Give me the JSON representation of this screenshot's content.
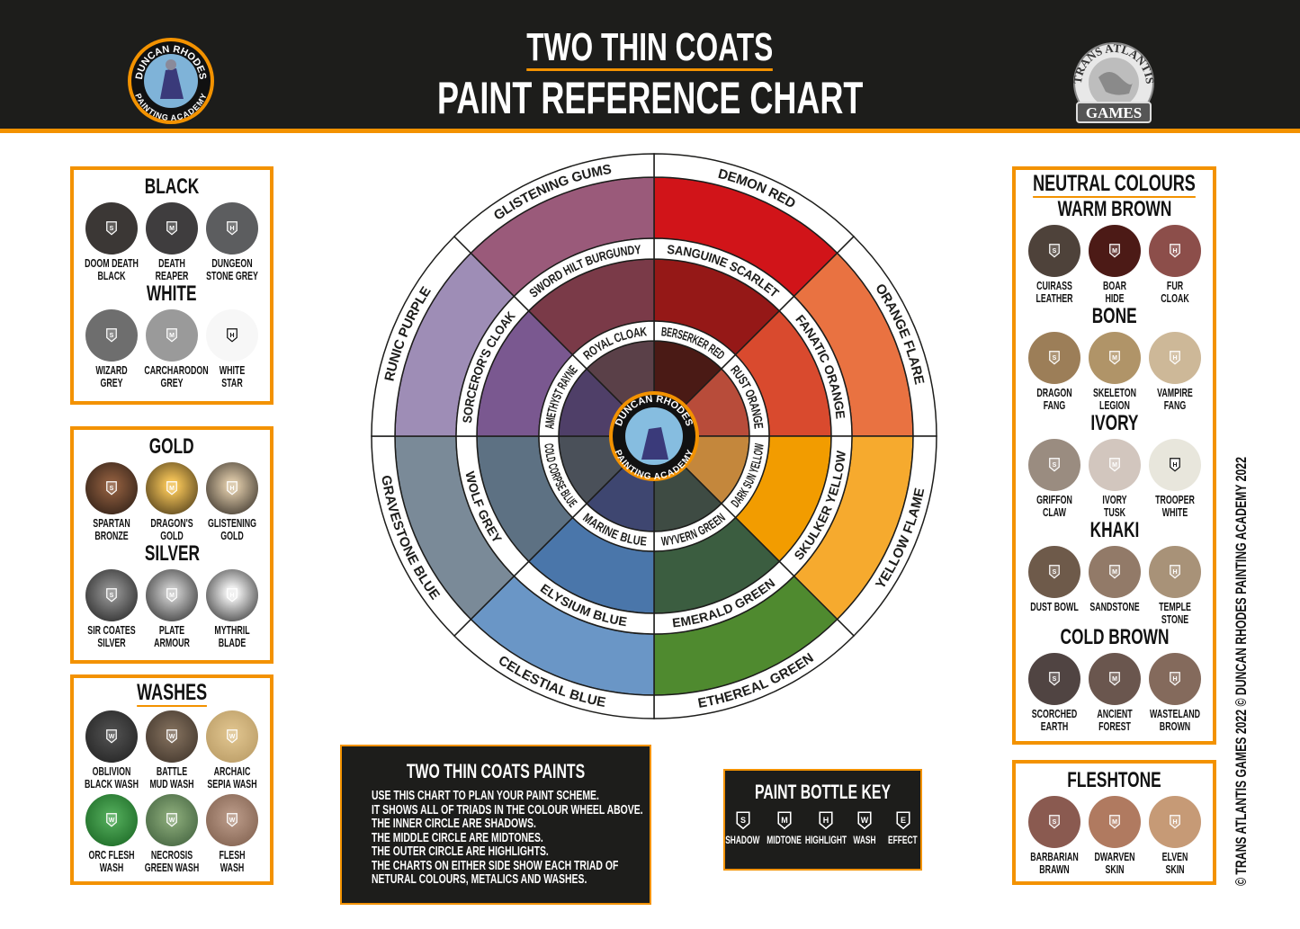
{
  "header": {
    "title_line1": "TWO THIN COATS",
    "title_line2": "PAINT REFERENCE CHART",
    "left_logo": {
      "top_text": "DUNCAN RHODES",
      "bottom_text": "PAINTING ACADEMY"
    },
    "right_logo": {
      "top_text": "TRANS ATLANTIS",
      "bottom_text": "GAMES"
    }
  },
  "colors": {
    "accent": "#f39200",
    "header_bg": "#1d1d1b"
  },
  "left_panels": [
    {
      "groups": [
        {
          "title": "BLACK",
          "paints": [
            {
              "name": "DOOM DEATH\nBLACK",
              "type": "S",
              "color": "#3b3735"
            },
            {
              "name": "DEATH\nREAPER",
              "type": "M",
              "color": "#3f3d3e"
            },
            {
              "name": "DUNGEON\nSTONE GREY",
              "type": "H",
              "color": "#5c5d5f"
            }
          ]
        },
        {
          "title": "WHITE",
          "paints": [
            {
              "name": "WIZARD\nGREY",
              "type": "S",
              "color": "#6e6e6e"
            },
            {
              "name": "CARCHARODON\nGREY",
              "type": "M",
              "color": "#9a9a9a"
            },
            {
              "name": "WHITE\nSTAR",
              "type": "H",
              "color": "#f7f7f7"
            }
          ]
        }
      ]
    },
    {
      "groups": [
        {
          "title": "GOLD",
          "paints": [
            {
              "name": "SPARTAN\nBRONZE",
              "type": "S",
              "color": "#8a5a3c",
              "edge": "#231812"
            },
            {
              "name": "DRAGON'S\nGOLD",
              "type": "M",
              "color": "#f0c056",
              "edge": "#3a2c12"
            },
            {
              "name": "GLISTENING\nGOLD",
              "type": "H",
              "color": "#d6c2a2",
              "edge": "#27221d"
            }
          ]
        },
        {
          "title": "SILVER",
          "paints": [
            {
              "name": "SIR COATES\nSILVER",
              "type": "S",
              "color": "#8c8c8c",
              "edge": "#1c1c1c"
            },
            {
              "name": "PLATE\nARMOUR",
              "type": "M",
              "color": "#c6c6c6",
              "edge": "#262626"
            },
            {
              "name": "MYTHRIL\nBLADE",
              "type": "H",
              "color": "#eeeeee",
              "edge": "#262626"
            }
          ]
        }
      ]
    },
    {
      "title": "WASHES",
      "groups": [
        {
          "title": "",
          "paints": [
            {
              "name": "OBLIVION\nBLACK WASH",
              "type": "W",
              "color": "#4c4c4c",
              "edge": "#1e1e1e"
            },
            {
              "name": "BATTLE\nMUD WASH",
              "type": "W",
              "color": "#7c6a58",
              "edge": "#3a2f26"
            },
            {
              "name": "ARCHAIC\nSEPIA WASH",
              "type": "W",
              "color": "#dcc08a",
              "edge": "#b49660"
            }
          ]
        },
        {
          "title": "",
          "paints": [
            {
              "name": "ORC FLESH\nWASH",
              "type": "W",
              "color": "#4ea656",
              "edge": "#14601e"
            },
            {
              "name": "NECROSIS\nGREEN WASH",
              "type": "W",
              "color": "#84a474",
              "edge": "#3a5a38"
            },
            {
              "name": "FLESH\nWASH",
              "type": "W",
              "color": "#b49482",
              "edge": "#7a5a48"
            }
          ]
        }
      ]
    }
  ],
  "right_panels": [
    {
      "title": "NEUTRAL COLOURS",
      "groups": [
        {
          "title": "WARM BROWN",
          "paints": [
            {
              "name": "CUIRASS\nLEATHER",
              "type": "S",
              "color": "#4e423a"
            },
            {
              "name": "BOAR\nHIDE",
              "type": "M",
              "color": "#4c1a16"
            },
            {
              "name": "FUR\nCLOAK",
              "type": "H",
              "color": "#8c4e4a"
            }
          ]
        },
        {
          "title": "BONE",
          "paints": [
            {
              "name": "DRAGON\nFANG",
              "type": "S",
              "color": "#9c7e58"
            },
            {
              "name": "SKELETON\nLEGION",
              "type": "M",
              "color": "#b09468"
            },
            {
              "name": "VAMPIRE\nFANG",
              "type": "H",
              "color": "#cdb898"
            }
          ]
        },
        {
          "title": "IVORY",
          "paints": [
            {
              "name": "GRIFFON\nCLAW",
              "type": "S",
              "color": "#9a8c80"
            },
            {
              "name": "IVORY\nTUSK",
              "type": "M",
              "color": "#d2c6be"
            },
            {
              "name": "TROOPER\nWHITE",
              "type": "H",
              "color": "#e8e6dc"
            }
          ]
        },
        {
          "title": "KHAKI",
          "paints": [
            {
              "name": "DUST BOWL",
              "type": "S",
              "color": "#6e5a4a"
            },
            {
              "name": "SANDSTONE",
              "type": "M",
              "color": "#927a68"
            },
            {
              "name": "TEMPLE\nSTONE",
              "type": "H",
              "color": "#a89278"
            }
          ]
        },
        {
          "title": "COLD BROWN",
          "paints": [
            {
              "name": "SCORCHED\nEARTH",
              "type": "S",
              "color": "#504442"
            },
            {
              "name": "ANCIENT\nFOREST",
              "type": "M",
              "color": "#6a564e"
            },
            {
              "name": "WASTELAND\nBROWN",
              "type": "H",
              "color": "#846a5c"
            }
          ]
        }
      ]
    },
    {
      "groups": [
        {
          "title": "FLESHTONE",
          "paints": [
            {
              "name": "BARBARIAN\nBRAWN",
              "type": "S",
              "color": "#8a5a50"
            },
            {
              "name": "DWARVEN\nSKIN",
              "type": "M",
              "color": "#b07a60"
            },
            {
              "name": "ELVEN\nSKIN",
              "type": "H",
              "color": "#c69a76"
            }
          ]
        }
      ]
    }
  ],
  "wheel": {
    "sectors": [
      {
        "outer": {
          "name": "DEMON RED",
          "color": "#d11419"
        },
        "middle": {
          "name": "SANGUINE SCARLET",
          "color": "#951817"
        },
        "inner": {
          "name": "BERSERKER RED",
          "color": "#4a1a15"
        }
      },
      {
        "outer": {
          "name": "ORANGE FLARE",
          "color": "#e97241"
        },
        "middle": {
          "name": "FANATIC ORANGE",
          "color": "#d94a2e"
        },
        "inner": {
          "name": "RUST ORANGE",
          "color": "#b84c3a"
        }
      },
      {
        "outer": {
          "name": "YELLOW FLAME",
          "color": "#f6aa2e"
        },
        "middle": {
          "name": "SKULKER YELLOW",
          "color": "#f29c00"
        },
        "inner": {
          "name": "DARK SUN YELLOW",
          "color": "#c4873c"
        }
      },
      {
        "outer": {
          "name": "ETHEREAL GREEN",
          "color": "#4f8a2f"
        },
        "middle": {
          "name": "EMERALD GREEN",
          "color": "#3b5d40"
        },
        "inner": {
          "name": "WYVERN GREEN",
          "color": "#3e4b43"
        }
      },
      {
        "outer": {
          "name": "CELESTIAL BLUE",
          "color": "#6a96c6"
        },
        "middle": {
          "name": "ELYSIUM BLUE",
          "color": "#4a76aa"
        },
        "inner": {
          "name": "MARINE BLUE",
          "color": "#3e4670"
        }
      },
      {
        "outer": {
          "name": "GRAVESTONE BLUE",
          "color": "#7a8a98"
        },
        "middle": {
          "name": "WOLF GREY",
          "color": "#5d7183"
        },
        "inner": {
          "name": "COLD CORPSE BLUE",
          "color": "#4a5059"
        }
      },
      {
        "outer": {
          "name": "RUNIC PURPLE",
          "color": "#9e8db6"
        },
        "middle": {
          "name": "SORCEROR'S CLOAK",
          "color": "#7a5890"
        },
        "inner": {
          "name": "AMETHYST RAYNE",
          "color": "#4f3f68"
        }
      },
      {
        "outer": {
          "name": "GLISTENING GUMS",
          "color": "#9a5a7a"
        },
        "middle": {
          "name": "SWORD HILT BURGUNDY",
          "color": "#7a3a48"
        },
        "inner": {
          "name": "ROYAL CLOAK",
          "color": "#5a4048"
        }
      }
    ],
    "center_logo": {
      "top_text": "DUNCAN RHODES",
      "bottom_text": "PAINTING ACADEMY"
    }
  },
  "info_box": {
    "title": "TWO THIN COATS PAINTS",
    "text": "USE THIS CHART TO PLAN YOUR PAINT SCHEME.\nIT SHOWS ALL OF TRIADS IN THE COLOUR WHEEL ABOVE.\nTHE INNER CIRCLE ARE SHADOWS.\nTHE MIDDLE CIRCLE ARE MIDTONES.\nTHE OUTER CIRCLE ARE HIGHLIGHTS.\nTHE CHARTS ON EITHER SIDE SHOW EACH TRIAD OF\nNETURAL COLOURS, METALICS AND WASHES."
  },
  "key_box": {
    "title": "PAINT BOTTLE KEY",
    "items": [
      {
        "letter": "S",
        "label": "SHADOW"
      },
      {
        "letter": "M",
        "label": "MIDTONE"
      },
      {
        "letter": "H",
        "label": "HIGHLIGHT"
      },
      {
        "letter": "W",
        "label": "WASH"
      },
      {
        "letter": "E",
        "label": "EFFECT"
      }
    ]
  },
  "copyright": "© TRANS ATLANTIS GAMES 2022\n© DUNCAN RHODES PAINTING ACADEMY 2022"
}
